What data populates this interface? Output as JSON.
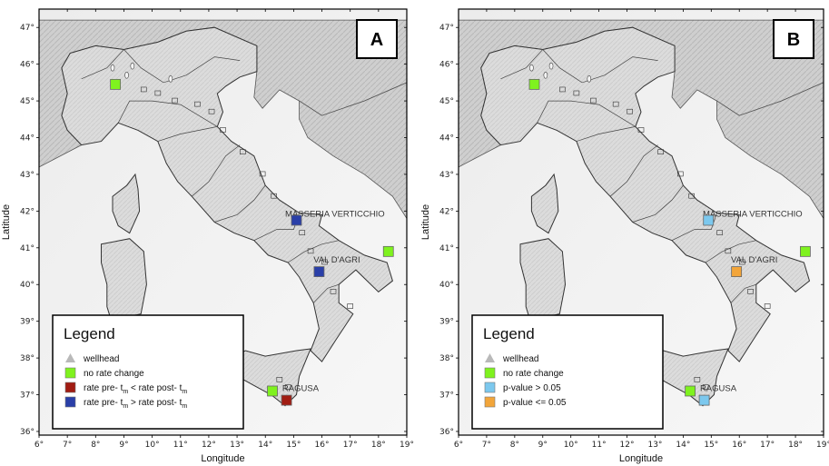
{
  "panels": [
    {
      "letter": "A",
      "ylabel": "Latitude",
      "xlabel": "Longitude",
      "lon_ticks": [
        "6°",
        "7°",
        "8°",
        "9°",
        "10°",
        "11°",
        "12°",
        "13°",
        "14°",
        "15°",
        "16°",
        "17°",
        "18°",
        "19°"
      ],
      "lat_ticks": [
        "36°",
        "37°",
        "38°",
        "39°",
        "40°",
        "41°",
        "42°",
        "43°",
        "44°",
        "45°",
        "46°",
        "47°"
      ],
      "places": [
        {
          "label": "MASSERIA VERTICCHIO",
          "lon": 14.7,
          "lat": 41.85
        },
        {
          "label": "VAL D'AGRI",
          "lon": 15.7,
          "lat": 40.6
        },
        {
          "label": "RAGUSA",
          "lon": 14.6,
          "lat": 37.1
        }
      ],
      "markers": [
        {
          "lon": 8.7,
          "lat": 45.45,
          "color": "#7ff21e"
        },
        {
          "lon": 18.35,
          "lat": 40.9,
          "color": "#7ff21e"
        },
        {
          "lon": 14.25,
          "lat": 37.1,
          "color": "#7ff21e"
        },
        {
          "lon": 14.75,
          "lat": 36.85,
          "color": "#a11c12"
        },
        {
          "lon": 15.1,
          "lat": 41.75,
          "color": "#2a3fa8"
        },
        {
          "lon": 15.9,
          "lat": 40.35,
          "color": "#2a3fa8"
        }
      ],
      "legend": {
        "title": "Legend",
        "items": [
          {
            "label": "wellhead",
            "sub": "",
            "label_after": "",
            "sub_after": "",
            "symbol": "triangle",
            "color": "#b9b9b9"
          },
          {
            "label": "no rate change",
            "sub": "",
            "label_after": "",
            "sub_after": "",
            "symbol": "square",
            "color": "#7ff21e"
          },
          {
            "label": "rate pre- t",
            "sub": "m",
            "label_after": " < rate post- t",
            "sub_after": "m",
            "symbol": "square",
            "color": "#a11c12"
          },
          {
            "label": "rate pre- t",
            "sub": "m",
            "label_after": " > rate post- t",
            "sub_after": "m",
            "symbol": "square",
            "color": "#2a3fa8"
          }
        ]
      }
    },
    {
      "letter": "B",
      "ylabel": "Latitude",
      "xlabel": "Longitude",
      "lon_ticks": [
        "6°",
        "7°",
        "8°",
        "9°",
        "10°",
        "11°",
        "12°",
        "13°",
        "14°",
        "15°",
        "16°",
        "17°",
        "18°",
        "19°"
      ],
      "lat_ticks": [
        "36°",
        "37°",
        "38°",
        "39°",
        "40°",
        "41°",
        "42°",
        "43°",
        "44°",
        "45°",
        "46°",
        "47°"
      ],
      "places": [
        {
          "label": "MASSERIA VERTICCHIO",
          "lon": 14.7,
          "lat": 41.85
        },
        {
          "label": "VAL D'AGRI",
          "lon": 15.7,
          "lat": 40.6
        },
        {
          "label": "RAGUSA",
          "lon": 14.6,
          "lat": 37.1
        }
      ],
      "markers": [
        {
          "lon": 8.7,
          "lat": 45.45,
          "color": "#7ff21e"
        },
        {
          "lon": 18.35,
          "lat": 40.9,
          "color": "#7ff21e"
        },
        {
          "lon": 14.25,
          "lat": 37.1,
          "color": "#7ff21e"
        },
        {
          "lon": 14.75,
          "lat": 36.85,
          "color": "#7cc8ee"
        },
        {
          "lon": 14.9,
          "lat": 41.75,
          "color": "#7cc8ee"
        },
        {
          "lon": 15.9,
          "lat": 40.35,
          "color": "#f2a53a"
        }
      ],
      "legend": {
        "title": "Legend",
        "items": [
          {
            "label": "wellhead",
            "sub": "",
            "label_after": "",
            "sub_after": "",
            "symbol": "triangle",
            "color": "#b9b9b9"
          },
          {
            "label": "no rate change",
            "sub": "",
            "label_after": "",
            "sub_after": "",
            "symbol": "square",
            "color": "#7ff21e"
          },
          {
            "label": "p-value > 0.05",
            "sub": "",
            "label_after": "",
            "sub_after": "",
            "symbol": "square",
            "color": "#7cc8ee"
          },
          {
            "label": "p-value <= 0.05",
            "sub": "",
            "label_after": "",
            "sub_after": "",
            "symbol": "square",
            "color": "#f2a53a"
          }
        ]
      }
    }
  ]
}
